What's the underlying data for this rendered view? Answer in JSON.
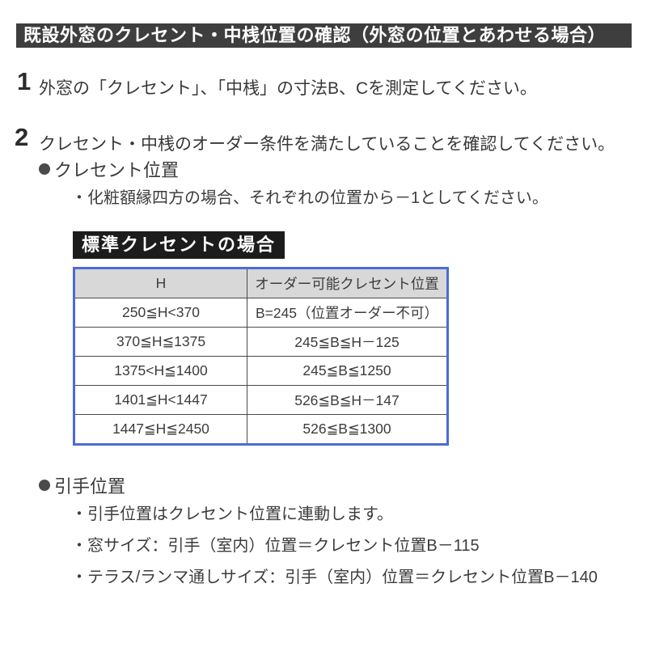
{
  "page": {
    "title": "既設外窓のクレセント・中桟位置の確認（外窓の位置とあわせる場合）",
    "steps": [
      {
        "number": "1",
        "text": "外窓の「クレセント」、「中桟」の寸法B、Cを測定してください。"
      },
      {
        "number": "2",
        "text": "クレセント・中桟のオーダー条件を満たしていることを確認してください。"
      }
    ],
    "crescent_section": {
      "heading": "クレセント位置",
      "note": "・化粧額縁四方の場合、それぞれの位置から－1としてください。"
    },
    "table_label": "標準クレセントの場合",
    "table": {
      "headers": [
        "H",
        "オーダー可能クレセント位置"
      ],
      "rows": [
        [
          "250≦H<370",
          "B=245（位置オーダー不可）"
        ],
        [
          "370≦H≦1375",
          "245≦B≦H－125"
        ],
        [
          "1375<H≦1400",
          "245≦B≦1250"
        ],
        [
          "1401≦H<1447",
          "526≦B≦H－147"
        ],
        [
          "1447≦H≦2450",
          "526≦B≦1300"
        ]
      ]
    },
    "handle_section": {
      "heading": "引手位置",
      "notes": [
        "・引手位置はクレセント位置に連動します。",
        "・窓サイズ：引手（室内）位置＝クレセント位置B－115",
        "・テラス/ランマ通しサイズ：引手（室内）位置＝クレセント位置B－140"
      ]
    },
    "colors": {
      "title_bar_bg": "#3e3e3e",
      "label_bg": "#1c1c1c",
      "table_border": "#4c6cd4",
      "table_header_bg": "#d8d8d8",
      "body_text": "#3c3c3c"
    }
  }
}
